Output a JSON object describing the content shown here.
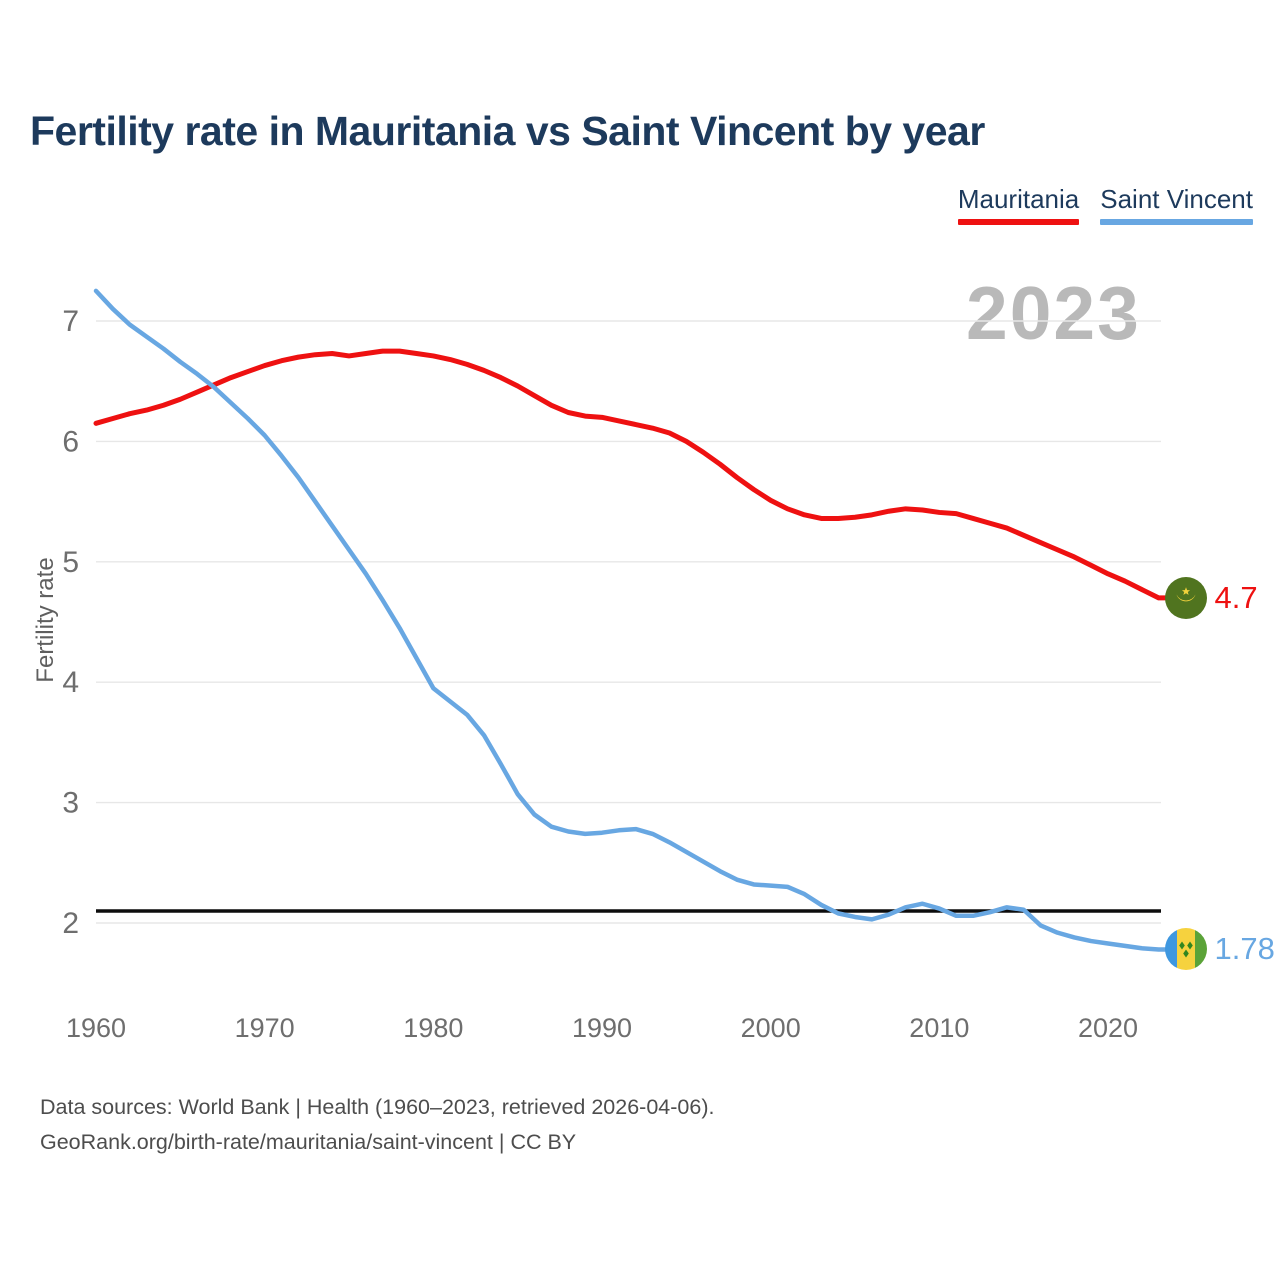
{
  "header": {
    "title": "Fertility rate in Mauritania vs Saint Vincent by year"
  },
  "footer": {
    "line1": "Data sources: World Bank | Health (1960–2023, retrieved 2026-04-06).",
    "line2": "GeoRank.org/birth-rate/mauritania/saint-vincent | CC BY"
  },
  "chart_data": {
    "type": "line",
    "title": "Fertility rate in Mauritania vs Saint Vincent by year",
    "ylabel": "Fertility rate",
    "xlabel": "",
    "watermark_year": "2023",
    "grid": "horizontal-only",
    "legend_position": "top-right",
    "ylim": [
      1.6,
      7.4
    ],
    "xlim": [
      1960,
      2023
    ],
    "y_ticks": [
      7,
      6,
      5,
      4,
      3,
      2
    ],
    "x_ticks": [
      "1960",
      "1970",
      "1980",
      "1990",
      "2000",
      "2010",
      "2020"
    ],
    "threshold_line": 2.1,
    "threshold_color": "#0d0d0d",
    "x": [
      1960,
      1961,
      1962,
      1963,
      1964,
      1965,
      1966,
      1967,
      1968,
      1969,
      1970,
      1971,
      1972,
      1973,
      1974,
      1975,
      1976,
      1977,
      1978,
      1979,
      1980,
      1981,
      1982,
      1983,
      1984,
      1985,
      1986,
      1987,
      1988,
      1989,
      1990,
      1991,
      1992,
      1993,
      1994,
      1995,
      1996,
      1997,
      1998,
      1999,
      2000,
      2001,
      2002,
      2003,
      2004,
      2005,
      2006,
      2007,
      2008,
      2009,
      2010,
      2011,
      2012,
      2013,
      2014,
      2015,
      2016,
      2017,
      2018,
      2019,
      2020,
      2021,
      2022,
      2023
    ],
    "series": [
      {
        "id": "mauritania",
        "name": "Mauritania",
        "color": "#ee1111",
        "end_label": "4.7",
        "values": [
          6.15,
          6.19,
          6.23,
          6.26,
          6.3,
          6.35,
          6.41,
          6.47,
          6.53,
          6.58,
          6.63,
          6.67,
          6.7,
          6.72,
          6.73,
          6.71,
          6.73,
          6.75,
          6.75,
          6.73,
          6.71,
          6.68,
          6.64,
          6.59,
          6.53,
          6.46,
          6.38,
          6.3,
          6.24,
          6.21,
          6.2,
          6.17,
          6.14,
          6.11,
          6.07,
          6.0,
          5.91,
          5.81,
          5.7,
          5.6,
          5.51,
          5.44,
          5.39,
          5.36,
          5.36,
          5.37,
          5.39,
          5.42,
          5.44,
          5.43,
          5.41,
          5.4,
          5.36,
          5.32,
          5.28,
          5.22,
          5.16,
          5.1,
          5.04,
          4.97,
          4.9,
          4.84,
          4.77,
          4.7
        ]
      },
      {
        "id": "saint-vincent",
        "name": "Saint Vincent",
        "color": "#68a7e2",
        "end_label": "1.78",
        "values": [
          7.25,
          7.1,
          6.97,
          6.87,
          6.77,
          6.66,
          6.56,
          6.45,
          6.32,
          6.19,
          6.05,
          5.88,
          5.7,
          5.5,
          5.3,
          5.1,
          4.9,
          4.68,
          4.45,
          4.2,
          3.95,
          3.84,
          3.73,
          3.56,
          3.32,
          3.07,
          2.9,
          2.8,
          2.76,
          2.74,
          2.75,
          2.77,
          2.78,
          2.74,
          2.67,
          2.59,
          2.51,
          2.43,
          2.36,
          2.32,
          2.31,
          2.3,
          2.24,
          2.15,
          2.08,
          2.05,
          2.03,
          2.07,
          2.13,
          2.16,
          2.12,
          2.06,
          2.06,
          2.09,
          2.13,
          2.11,
          1.98,
          1.92,
          1.88,
          1.85,
          1.83,
          1.81,
          1.79,
          1.78
        ]
      }
    ]
  }
}
